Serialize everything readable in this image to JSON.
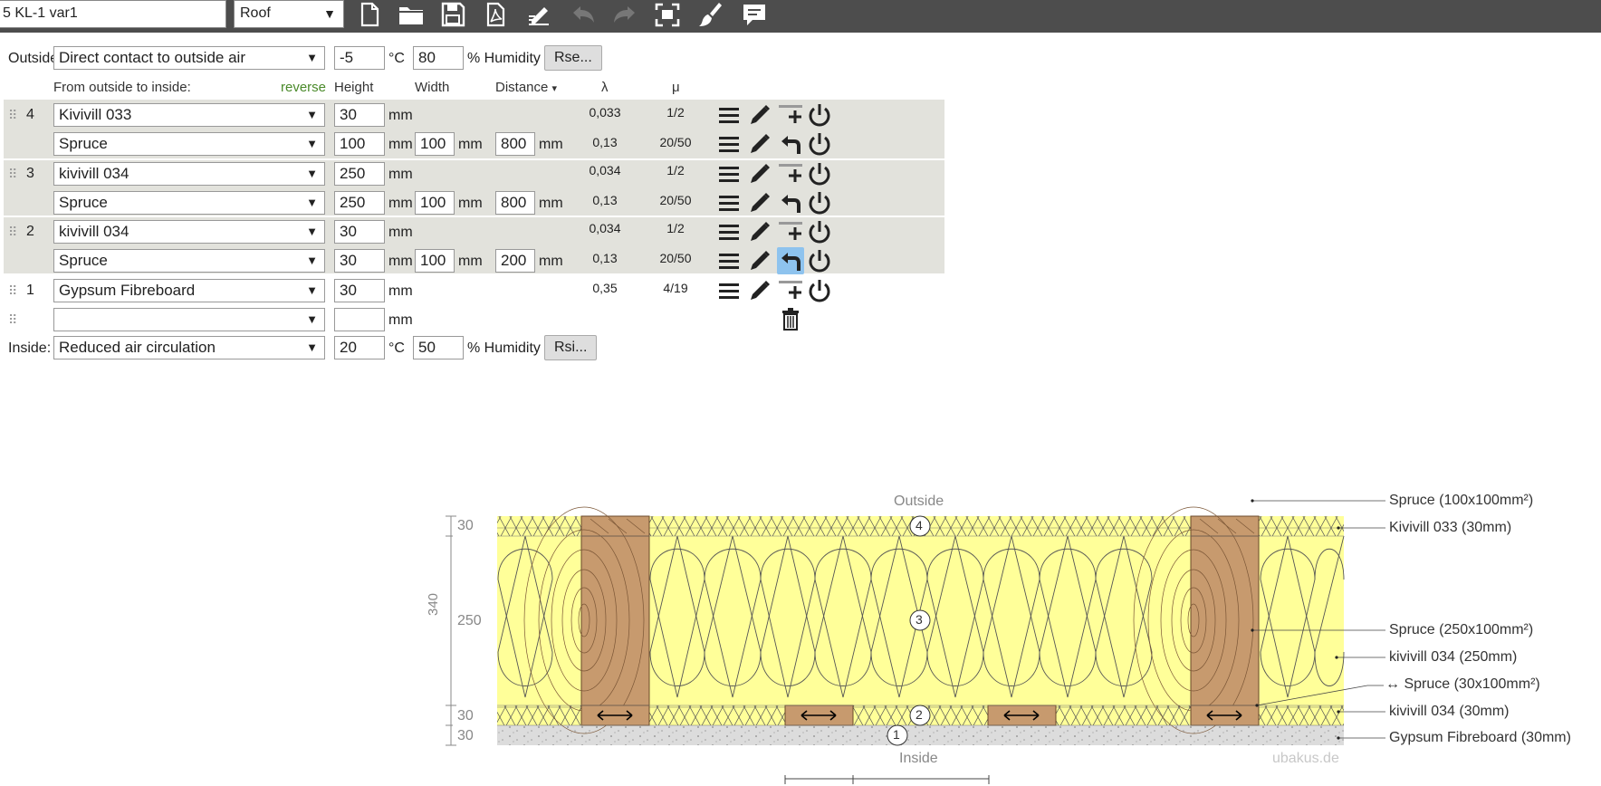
{
  "toolbar": {
    "project_name": "5 KL-1 var1",
    "construction_type": "Roof",
    "icons": [
      "new-file-icon",
      "open-folder-icon",
      "save-icon",
      "pdf-icon",
      "edit-sign-icon",
      "undo-icon",
      "redo-icon",
      "fullscreen-icon",
      "clean-brush-icon",
      "comment-icon"
    ]
  },
  "outside": {
    "label": "Outside",
    "condition": "Direct contact to outside air",
    "temperature": "-5",
    "temp_unit": "°C",
    "humidity": "80",
    "humidity_unit": "% Humidity",
    "rse_button": "Rse..."
  },
  "headers": {
    "from_outside": "From outside to inside:",
    "reverse": "reverse",
    "height": "Height",
    "width": "Width",
    "distance": "Distance",
    "distance_arrow": "▾",
    "lambda": "λ",
    "mu": "μ"
  },
  "units": {
    "mm": "mm"
  },
  "layers": [
    {
      "number": "4",
      "main": {
        "material": "Kivivill 033",
        "height": "30",
        "lambda": "0,033",
        "mu": "1/2"
      },
      "sub": {
        "material": "Spruce",
        "height": "100",
        "width": "100",
        "distance": "800",
        "lambda": "0,13",
        "mu": "20/50"
      }
    },
    {
      "number": "3",
      "main": {
        "material": "kivivill 034",
        "height": "250",
        "lambda": "0,034",
        "mu": "1/2"
      },
      "sub": {
        "material": "Spruce",
        "height": "250",
        "width": "100",
        "distance": "800",
        "lambda": "0,13",
        "mu": "20/50"
      }
    },
    {
      "number": "2",
      "main": {
        "material": "kivivill 034",
        "height": "30",
        "lambda": "0,034",
        "mu": "1/2"
      },
      "sub": {
        "material": "Spruce",
        "height": "30",
        "width": "100",
        "distance": "200",
        "lambda": "0,13",
        "mu": "20/50"
      }
    },
    {
      "number": "1",
      "main": {
        "material": "Gypsum Fibreboard",
        "height": "30",
        "lambda": "0,35",
        "mu": "4/19"
      }
    }
  ],
  "empty_layer": {
    "material": "",
    "height": ""
  },
  "inside": {
    "label": "Inside:",
    "condition": "Reduced air circulation",
    "temperature": "20",
    "temp_unit": "°C",
    "humidity": "50",
    "humidity_unit": "% Humidity",
    "rsi_button": "Rsi..."
  },
  "diagram": {
    "outside_label": "Outside",
    "inside_label": "Inside",
    "watermark": "ubakus.de",
    "total_thickness": "340",
    "dim_30_top": "30",
    "dim_250": "250",
    "dim_30_mid": "30",
    "dim_30_bottom": "30",
    "marker_4": "4",
    "marker_3": "3",
    "marker_2": "2",
    "marker_1": "1",
    "legend": [
      "Spruce (100x100mm²)",
      "Kivivill 033 (30mm)",
      "Spruce (250x100mm²)",
      "kivivill 034 (250mm)",
      "↔ Spruce (30x100mm²)",
      "kivivill 034 (30mm)",
      "Gypsum Fibreboard (30mm)"
    ],
    "colors": {
      "insulation": "#ffff99",
      "wood": "#c79a6e",
      "gypsum": "#dddddd"
    }
  }
}
